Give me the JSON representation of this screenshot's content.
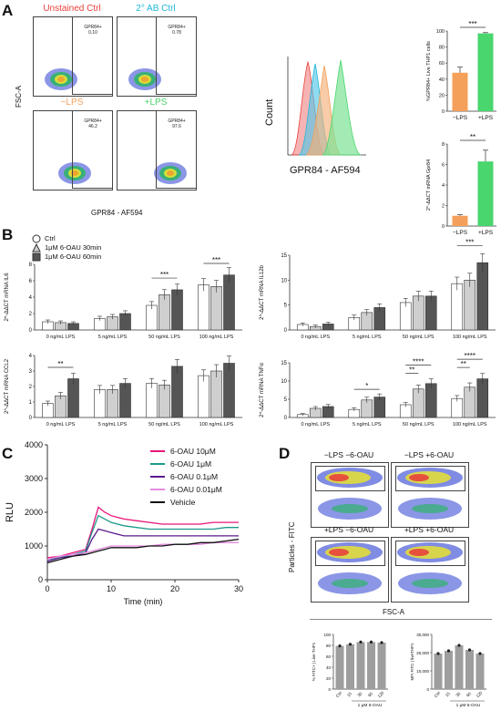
{
  "panel_letters": {
    "a": "A",
    "b": "B",
    "c": "C",
    "d": "D"
  },
  "colors": {
    "orange": "#f5a05a",
    "green": "#49d66e",
    "red": "#e8413c",
    "cyan": "#1fb6d9",
    "gray": "#9e9e9e",
    "dark": "#555555"
  },
  "panelA": {
    "flow_plots": [
      {
        "title": "Unstained Ctrl",
        "title_color": "#e8413c",
        "gate_label": "GPR84+",
        "gate_value": "0.10"
      },
      {
        "title": "2° AB Ctrl",
        "title_color": "#1fb6d9",
        "gate_label": "GPR84+",
        "gate_value": "0.78"
      },
      {
        "title": "−LPS",
        "title_color": "#f5a05a",
        "gate_label": "GPR84+",
        "gate_value": "46.2"
      },
      {
        "title": "+LPS",
        "title_color": "#49d66e",
        "gate_label": "GPR84+",
        "gate_value": "97.6"
      }
    ],
    "y_axis_label": "FSC-A",
    "x_axis_label": "GPR84 - AF594",
    "histogram": {
      "y_label": "Count",
      "x_label": "GPR84 - AF594"
    }
  },
  "chart_data": [
    {
      "id": "A-pct",
      "type": "bar",
      "categories": [
        "−LPS",
        "+LPS"
      ],
      "values": [
        48,
        97
      ],
      "errors": [
        7,
        1
      ],
      "colors": [
        "#f5a05a",
        "#49d66e"
      ],
      "ylabel": "%GPR84+ Live THP1 cells",
      "ylim": [
        0,
        100
      ],
      "yticks": [
        0,
        20,
        40,
        60,
        80,
        100
      ],
      "significance": "***"
    },
    {
      "id": "A-mrna",
      "type": "bar",
      "categories": [
        "−LPS",
        "+LPS"
      ],
      "values": [
        1,
        6.3
      ],
      "errors": [
        0.1,
        1.1
      ],
      "colors": [
        "#f5a05a",
        "#49d66e"
      ],
      "ylabel": "2^-ΔΔCT mRNA Gpr84",
      "ylim": [
        0,
        8
      ],
      "yticks": [
        0,
        2,
        4,
        6,
        8
      ],
      "significance": "**"
    },
    {
      "id": "B-IL6",
      "type": "bar",
      "ylabel": "2^-ΔΔCT mRNA IL6",
      "ylim": [
        0,
        8
      ],
      "yticks": [
        0,
        2,
        4,
        6,
        8
      ],
      "groups": [
        "0 ng/mL LPS",
        "5 ng/mL LPS",
        "50 ng/mL LPS",
        "100 ng/mL LPS"
      ],
      "series": [
        {
          "name": "Ctrl",
          "values": [
            1.0,
            1.4,
            3.0,
            5.5
          ]
        },
        {
          "name": "1μM 6-OAU 30min",
          "values": [
            0.9,
            1.6,
            4.3,
            5.3
          ]
        },
        {
          "name": "1μM 6-OAU 60min",
          "values": [
            0.8,
            2.0,
            4.9,
            6.7
          ]
        }
      ],
      "significance": [
        {
          "group": 2,
          "label": "***"
        },
        {
          "group": 3,
          "label": "***"
        }
      ]
    },
    {
      "id": "B-IL12b",
      "type": "bar",
      "ylabel": "2^-ΔΔCT mRNA IL12b",
      "ylim": [
        0,
        15
      ],
      "yticks": [
        0,
        5,
        10,
        15
      ],
      "groups": [
        "0 ng/mL LPS",
        "5 ng/mL LPS",
        "50 ng/mL LPS",
        "100 ng/mL LPS"
      ],
      "series": [
        {
          "name": "Ctrl",
          "values": [
            1.1,
            2.5,
            5.5,
            9.3
          ]
        },
        {
          "name": "1μM 6-OAU 30min",
          "values": [
            0.7,
            3.5,
            6.8,
            10.0
          ]
        },
        {
          "name": "1μM 6-OAU 60min",
          "values": [
            1.2,
            4.5,
            6.8,
            13.5
          ]
        }
      ],
      "significance": [
        {
          "group": 3,
          "label": "***"
        }
      ]
    },
    {
      "id": "B-CCL2",
      "type": "bar",
      "ylabel": "2^-ΔΔCT mRNA CCL2",
      "ylim": [
        0,
        4
      ],
      "yticks": [
        0,
        1,
        2,
        3,
        4
      ],
      "groups": [
        "0 ng/mL LPS",
        "5 ng/mL LPS",
        "50 ng/mL LPS",
        "100 ng/mL LPS"
      ],
      "series": [
        {
          "name": "Ctrl",
          "values": [
            0.9,
            1.8,
            2.2,
            2.7
          ]
        },
        {
          "name": "1μM 6-OAU 30min",
          "values": [
            1.4,
            1.8,
            2.1,
            3.0
          ]
        },
        {
          "name": "1μM 6-OAU 60min",
          "values": [
            2.5,
            2.2,
            3.3,
            3.5
          ]
        }
      ],
      "significance": [
        {
          "group": 0,
          "label": "**"
        }
      ]
    },
    {
      "id": "B-TNFa",
      "type": "bar",
      "ylabel": "2^-ΔΔCT mRNA TNFα",
      "ylim": [
        0,
        15
      ],
      "yticks": [
        0,
        5,
        10,
        15
      ],
      "groups": [
        "0 ng/mL LPS",
        "5 ng/mL LPS",
        "50 ng/mL LPS",
        "100 ng/mL LPS"
      ],
      "series": [
        {
          "name": "Ctrl",
          "values": [
            0.8,
            2.2,
            3.5,
            5.2
          ]
        },
        {
          "name": "1μM 6-OAU 30min",
          "values": [
            2.5,
            4.8,
            7.8,
            8.3
          ]
        },
        {
          "name": "1μM 6-OAU 60min",
          "values": [
            3.0,
            5.6,
            9.3,
            10.6
          ]
        }
      ],
      "significance": [
        {
          "group": 1,
          "label": "*"
        },
        {
          "group": 2,
          "label": "**"
        },
        {
          "group": 2,
          "label": "****"
        },
        {
          "group": 3,
          "label": "**"
        },
        {
          "group": 3,
          "label": "****"
        }
      ]
    },
    {
      "id": "C",
      "type": "line",
      "xlabel": "Time (min)",
      "ylabel": "RLU",
      "xlim": [
        0,
        30
      ],
      "ylim": [
        0,
        4000
      ],
      "xticks": [
        0,
        10,
        20,
        30
      ],
      "yticks": [
        0,
        1000,
        2000,
        3000,
        4000
      ],
      "x": [
        0,
        2,
        4,
        6,
        7,
        8,
        9,
        10,
        12,
        14,
        16,
        18,
        20,
        22,
        24,
        26,
        28,
        30
      ],
      "series": [
        {
          "name": "6-OAU 10μM",
          "color": "#e8157a",
          "values": [
            650,
            700,
            800,
            900,
            1500,
            2150,
            2000,
            1900,
            1800,
            1750,
            1700,
            1650,
            1650,
            1650,
            1650,
            1700,
            1700,
            1700
          ]
        },
        {
          "name": "6-OAU 1μM",
          "color": "#1e9a8a",
          "values": [
            600,
            650,
            750,
            850,
            1400,
            1900,
            1800,
            1700,
            1600,
            1550,
            1500,
            1500,
            1500,
            1500,
            1500,
            1500,
            1550,
            1550
          ]
        },
        {
          "name": "6-OAU 0.1μM",
          "color": "#5a1a8c",
          "values": [
            550,
            650,
            700,
            800,
            1200,
            1500,
            1450,
            1400,
            1300,
            1300,
            1300,
            1300,
            1300,
            1300,
            1300,
            1300,
            1300,
            1300
          ]
        },
        {
          "name": "6-OAU 0.01μM",
          "color": "#e58be0",
          "values": [
            600,
            700,
            750,
            800,
            850,
            900,
            950,
            1000,
            1000,
            1000,
            1000,
            1050,
            1050,
            1050,
            1050,
            1100,
            1100,
            1100
          ]
        },
        {
          "name": "Vehicle",
          "color": "#111111",
          "values": [
            500,
            600,
            700,
            750,
            800,
            850,
            900,
            950,
            950,
            950,
            1000,
            1000,
            1050,
            1050,
            1100,
            1100,
            1150,
            1200
          ]
        }
      ]
    },
    {
      "id": "D-pct",
      "type": "bar",
      "categories": [
        "Ctrl",
        "15",
        "30",
        "60",
        "120"
      ],
      "values": [
        79,
        82,
        86,
        86,
        85
      ],
      "color": "#9e9e9e",
      "ylabel": "% FITC+ | Live THP1",
      "xlabel": "1 μM 6-OAU",
      "ylim": [
        0,
        100
      ],
      "yticks": [
        0,
        20,
        40,
        60,
        80,
        100
      ]
    },
    {
      "id": "D-mfi",
      "type": "bar",
      "categories": [
        "Ctrl",
        "15",
        "30",
        "60",
        "120"
      ],
      "values": [
        19500,
        21000,
        24000,
        21500,
        19500
      ],
      "color": "#9e9e9e",
      "ylabel": "MFI FITC | liveTHP1",
      "xlabel": "1 μM 6-OAU",
      "ylim": [
        0,
        30000
      ],
      "yticks": [
        0,
        10000,
        20000,
        30000
      ],
      "ytick_labels": [
        "0",
        "10,000",
        "20,000",
        "30,000"
      ]
    }
  ],
  "panelD": {
    "flow_titles": [
      "−LPS −6-OAU",
      "−LPS +6-OAU",
      "+LPS −6-OAU",
      "+LPS +6-OAU"
    ],
    "y_axis_label": "Particles - FITC",
    "x_axis_label": "FSC-A"
  }
}
